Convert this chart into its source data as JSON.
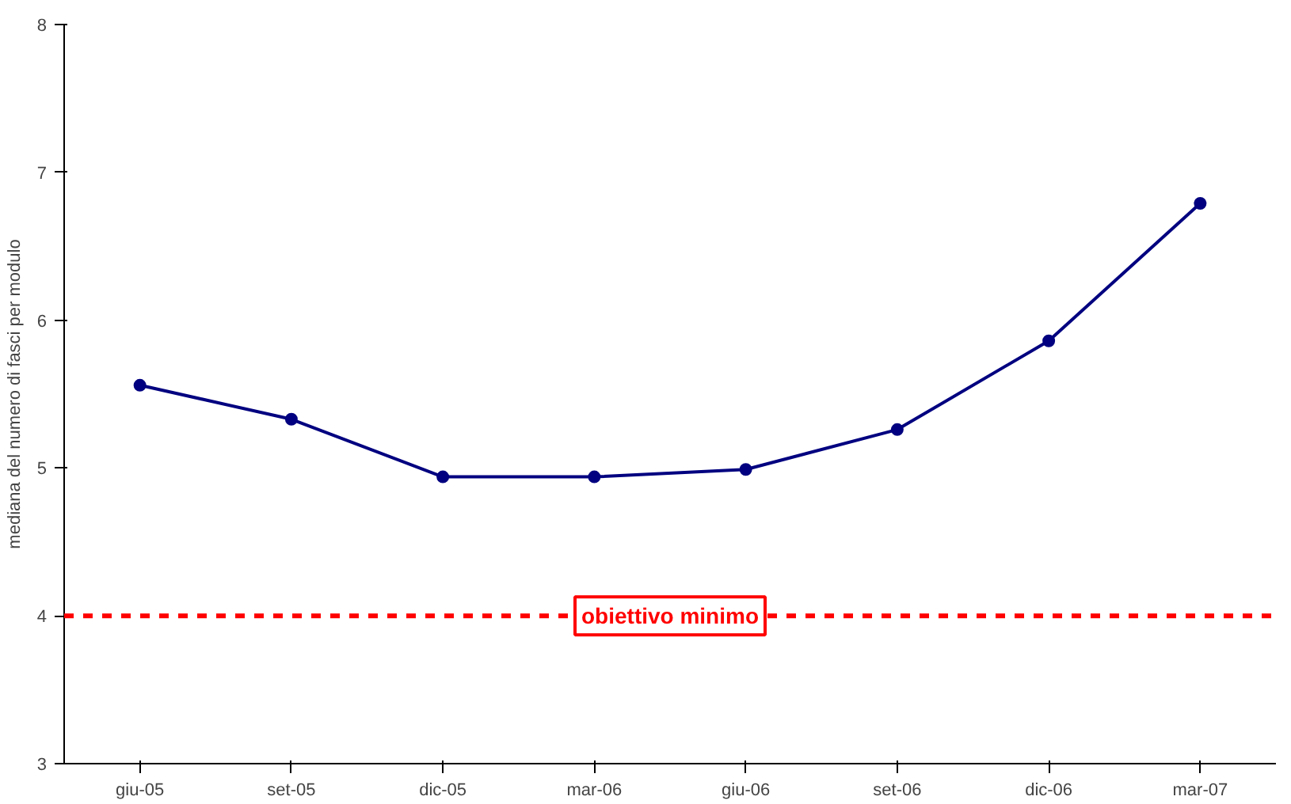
{
  "chart_data": {
    "type": "line",
    "ylabel": "mediana del numero di fasci per modulo",
    "categories": [
      "giu-05",
      "set-05",
      "dic-05",
      "mar-06",
      "giu-06",
      "set-06",
      "dic-06",
      "mar-07"
    ],
    "series": [
      {
        "color": "#000080",
        "values": [
          5.56,
          5.33,
          4.94,
          4.94,
          4.99,
          5.26,
          5.86,
          6.79
        ]
      }
    ],
    "ylim": [
      3,
      8
    ],
    "yticks": [
      3,
      4,
      5,
      6,
      7,
      8
    ],
    "grid": false,
    "marker": "circle",
    "line_style": "solid",
    "ref_lines": [
      {
        "axis": "y",
        "value": 4,
        "label": "obiettivo minimo",
        "color": "#ff0000",
        "line_style": "dashed"
      }
    ]
  }
}
